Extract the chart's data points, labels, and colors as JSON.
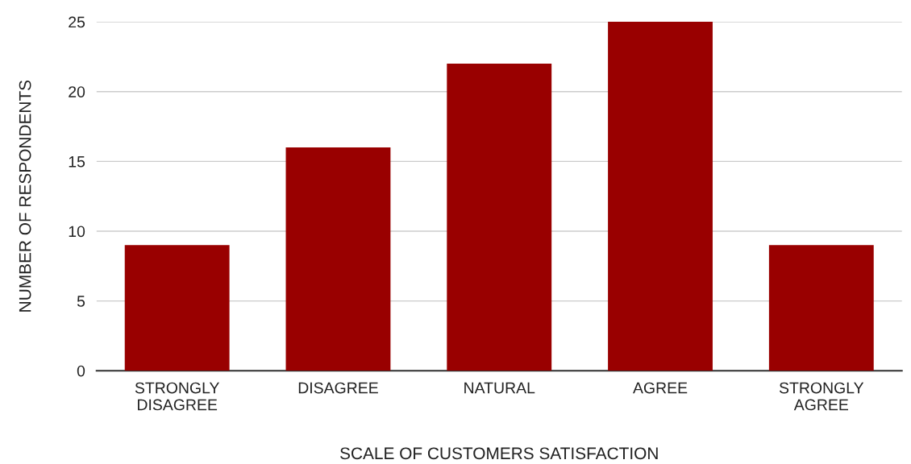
{
  "chart_data": {
    "type": "bar",
    "xlabel": "SCALE OF CUSTOMERS SATISFACTION",
    "ylabel": "NUMBER OF RESPONDENTS",
    "categories": [
      "STRONGLY\nDISAGREE",
      "DISAGREE",
      "NATURAL",
      "AGREE",
      "STRONGLY\nAGREE"
    ],
    "values": [
      9,
      16,
      22,
      25,
      9
    ],
    "color": "#990000",
    "ylim": [
      0,
      25
    ],
    "yticks": [
      0,
      5,
      10,
      15,
      20,
      25
    ],
    "grid": "y"
  }
}
